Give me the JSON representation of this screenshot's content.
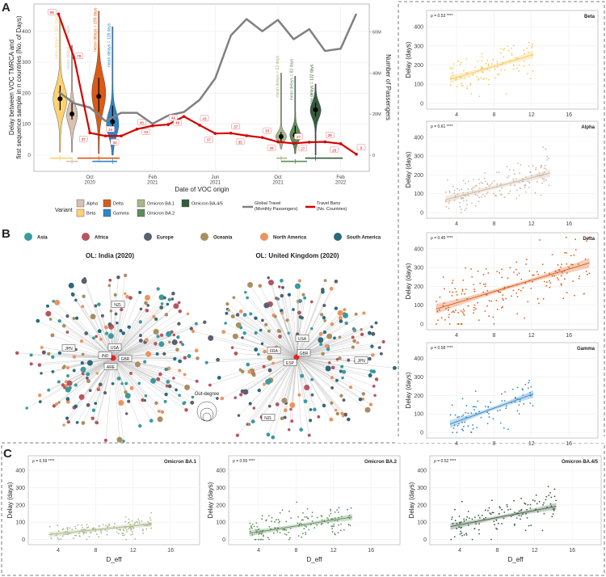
{
  "panel_labels": {
    "a": "A",
    "b": "B",
    "c": "C"
  },
  "chart_data": [
    {
      "id": "panel-a",
      "type": "line",
      "title": "",
      "xlabel": "Date of VOC origin",
      "ylabel": [
        "Delay between VOC TMRCA and",
        "first sequence sample in n countries (No. of Days)"
      ],
      "y2label": "Number of Passengers",
      "x_unit": "months since Jul 2020",
      "ylim": [
        -55,
        485
      ],
      "yticks": [
        0,
        100,
        200,
        300,
        400
      ],
      "y2ticks": [
        {
          "value": 0,
          "label": "0"
        },
        {
          "value": 20,
          "label": "20M"
        },
        {
          "value": 40,
          "label": "40M"
        },
        {
          "value": 60,
          "label": "60M"
        }
      ],
      "xticks": [
        {
          "month": 3,
          "label": "Oct",
          "year": "2020"
        },
        {
          "month": 7,
          "label": "Feb",
          "year": "2021"
        },
        {
          "month": 11,
          "label": "Jun",
          "year": "2021"
        },
        {
          "month": 15,
          "label": "Oct",
          "year": "2021"
        },
        {
          "month": 19,
          "label": "Feb",
          "year": "2022"
        }
      ],
      "grid": true,
      "global_travel": {
        "name": "Global Travel (Monthly Passengers)",
        "color": "#808080",
        "months": [
          1,
          2,
          3,
          4,
          5,
          6,
          7,
          8,
          9,
          10,
          11,
          12,
          13,
          14,
          15,
          16,
          17,
          18,
          19,
          20
        ],
        "values_millions": [
          30.8,
          25.2,
          23.2,
          16.6,
          20.6,
          20.6,
          15.3,
          19.3,
          21.0,
          26.9,
          37.4,
          58.3,
          66.2,
          60.3,
          65.8,
          56.4,
          61.3,
          50.7,
          51.8,
          68.8
        ]
      },
      "travel_bans": {
        "name": "Travel Bans (No. Countries)",
        "color": "#d40000",
        "months": [
          1,
          2,
          3,
          4,
          5,
          6,
          7,
          8,
          9,
          10,
          11,
          12,
          13,
          14,
          15,
          16,
          17,
          18,
          19,
          20
        ],
        "plotted_values": [
          456,
          314,
          72,
          62,
          62,
          84,
          95,
          99,
          125,
          97,
          70,
          71,
          63,
          57,
          43,
          38,
          42,
          43,
          37,
          3
        ],
        "labels": [
          "95",
          "78",
          "37",
          "34",
          "34",
          "40",
          "43",
          "44",
          "48",
          "43",
          "37",
          "37",
          "35",
          "33",
          "29",
          "27",
          "27",
          "28",
          "26",
          "9"
        ]
      },
      "violins": [
        {
          "variant": "Beta",
          "color": "#fdd273",
          "month": 1.1,
          "min": 10,
          "max": 440,
          "mode": 180,
          "sd": 60,
          "point": 182,
          "ci": [
            145,
            225
          ],
          "mean_label": "mean delays = 187 days",
          "origin_range": [
            0.45,
            1.91
          ],
          "half_width": 8
        },
        {
          "variant": "Alpha",
          "color": "#d9c1b0",
          "month": 1.86,
          "min": 10,
          "max": 355,
          "mode": 130,
          "sd": 45,
          "point": 133,
          "ci": [
            115,
            175
          ],
          "mean_label": "mean delays = 135 days",
          "origin_range": [
            1.48,
            2.25
          ],
          "half_width": 6
        },
        {
          "variant": "Delta",
          "color": "#d95b16",
          "month": 3.57,
          "min": 5,
          "max": 465,
          "mode": 200,
          "sd": 80,
          "point": 190,
          "ci": [
            140,
            250
          ],
          "mean_label": "mean delays = 195 days",
          "origin_range": [
            2.2,
            4.9
          ],
          "half_width": 8
        },
        {
          "variant": "Gamma",
          "color": "#2e86c8",
          "month": 4.45,
          "min": 0,
          "max": 415,
          "mode": 100,
          "sd": 55,
          "point": 108,
          "ci": [
            75,
            160
          ],
          "mean_label": "mean delays = 128 days",
          "origin_range": [
            3.16,
            4.74
          ],
          "half_width": 7
        },
        {
          "variant": "Omicron BA.1",
          "color": "#a8b88a",
          "month": 15.2,
          "min": 20,
          "max": 265,
          "mode": 60,
          "sd": 20,
          "point": 60,
          "ci": [
            45,
            75
          ],
          "mean_label": "mean delays = 62 days",
          "origin_range": [
            14.9,
            15.57
          ],
          "half_width": 6
        },
        {
          "variant": "Omicron BA.2",
          "color": "#5e8d5b",
          "month": 16.1,
          "min": 5,
          "max": 255,
          "mode": 65,
          "sd": 30,
          "point": 65,
          "ci": [
            50,
            95
          ],
          "mean_label": "mean delays = 82 days",
          "origin_range": [
            15.2,
            16.86
          ],
          "half_width": 6
        },
        {
          "variant": "Omicron BA.4/5",
          "color": "#375b3d",
          "month": 17.4,
          "min": 0,
          "max": 230,
          "mode": 145,
          "sd": 35,
          "point": 147,
          "ci": [
            125,
            170
          ],
          "mean_label": "mean delays = 132 days",
          "origin_range": [
            16.74,
            19.13
          ],
          "half_width": 6
        }
      ],
      "legend": {
        "title": "Variant",
        "items": [
          "Alpha",
          "Beta",
          "Delta",
          "Gamma",
          "Omicron BA.1",
          "Omicron BA.2",
          "Omicron BA.4/5"
        ],
        "travel_line1": "Global Travel",
        "travel_line2": "(Monthly Passengers)",
        "bans_line1": "Travel Bans",
        "bans_line2": "(No. Countries)"
      }
    },
    {
      "id": "panel-b",
      "type": "network",
      "continents": [
        {
          "name": "Asia",
          "color": "#3a9a9e"
        },
        {
          "name": "Africa",
          "color": "#b5565e"
        },
        {
          "name": "Europe",
          "color": "#5a6070"
        },
        {
          "name": "Oceania",
          "color": "#a88f5f"
        },
        {
          "name": "North America",
          "color": "#eb9461"
        },
        {
          "name": "South America",
          "color": "#2c6a7a"
        }
      ],
      "size_legend": "Out-degree",
      "networks": [
        {
          "title": "OL: India (2020)",
          "labels": [
            "NZL",
            "JPN",
            "USA",
            "IND",
            "GBR",
            "ARE"
          ]
        },
        {
          "title": "OL: United Kingdom (2020)",
          "labels": [
            "USA",
            "FRA",
            "GBR",
            "ESP",
            "JPN",
            "NZL"
          ]
        }
      ]
    },
    {
      "id": "scatter-panels",
      "type": "scatter",
      "xlabel": "D_eff",
      "ylabel": "Delay (days)",
      "xlim": [
        0.8,
        19.1
      ],
      "ylim": [
        -30,
        485
      ],
      "xticks": [
        4,
        8,
        12,
        16
      ],
      "yticks": [
        0,
        100,
        200,
        300,
        400
      ],
      "panels": [
        {
          "title": "Beta",
          "rho": "ρ = 0.53 ****",
          "color": "#f9c95e",
          "n": 110,
          "fit": [
            [
              3.3,
              125
            ],
            [
              12.2,
              255
            ]
          ],
          "sd": 50
        },
        {
          "title": "Alpha",
          "rho": "ρ = 0.61 ****",
          "color": "#cdb5a3",
          "n": 160,
          "fit": [
            [
              2.8,
              68
            ],
            [
              14,
              210
            ]
          ],
          "sd": 50
        },
        {
          "title": "Delta",
          "rho": "ρ = 0.45 ****",
          "color": "#d95b16",
          "n": 190,
          "fit": [
            [
              1.8,
              80
            ],
            [
              18.2,
              325
            ]
          ],
          "sd": 80
        },
        {
          "title": "Gamma",
          "rho": "ρ = 0.58 ****",
          "color": "#2e86c8",
          "n": 85,
          "fit": [
            [
              3.3,
              45
            ],
            [
              12.2,
              208
            ]
          ],
          "sd": 55
        },
        {
          "title": "Omicron BA.1",
          "rho": "ρ = 0.59 ****",
          "color": "#a8b88a",
          "n": 140,
          "fit": [
            [
              3,
              28
            ],
            [
              14,
              90
            ]
          ],
          "sd": 25
        },
        {
          "title": "Omicron BA.2",
          "rho": "ρ = 0.55 ****",
          "color": "#5e8d5b",
          "n": 150,
          "fit": [
            [
              3,
              35
            ],
            [
              14,
              130
            ]
          ],
          "sd": 40
        },
        {
          "title": "Omicron BA.4/5",
          "rho": "ρ = 0.52 ****",
          "color": "#375b3d",
          "n": 130,
          "fit": [
            [
              3,
              75
            ],
            [
              14.3,
              192
            ]
          ],
          "sd": 50
        }
      ]
    }
  ]
}
